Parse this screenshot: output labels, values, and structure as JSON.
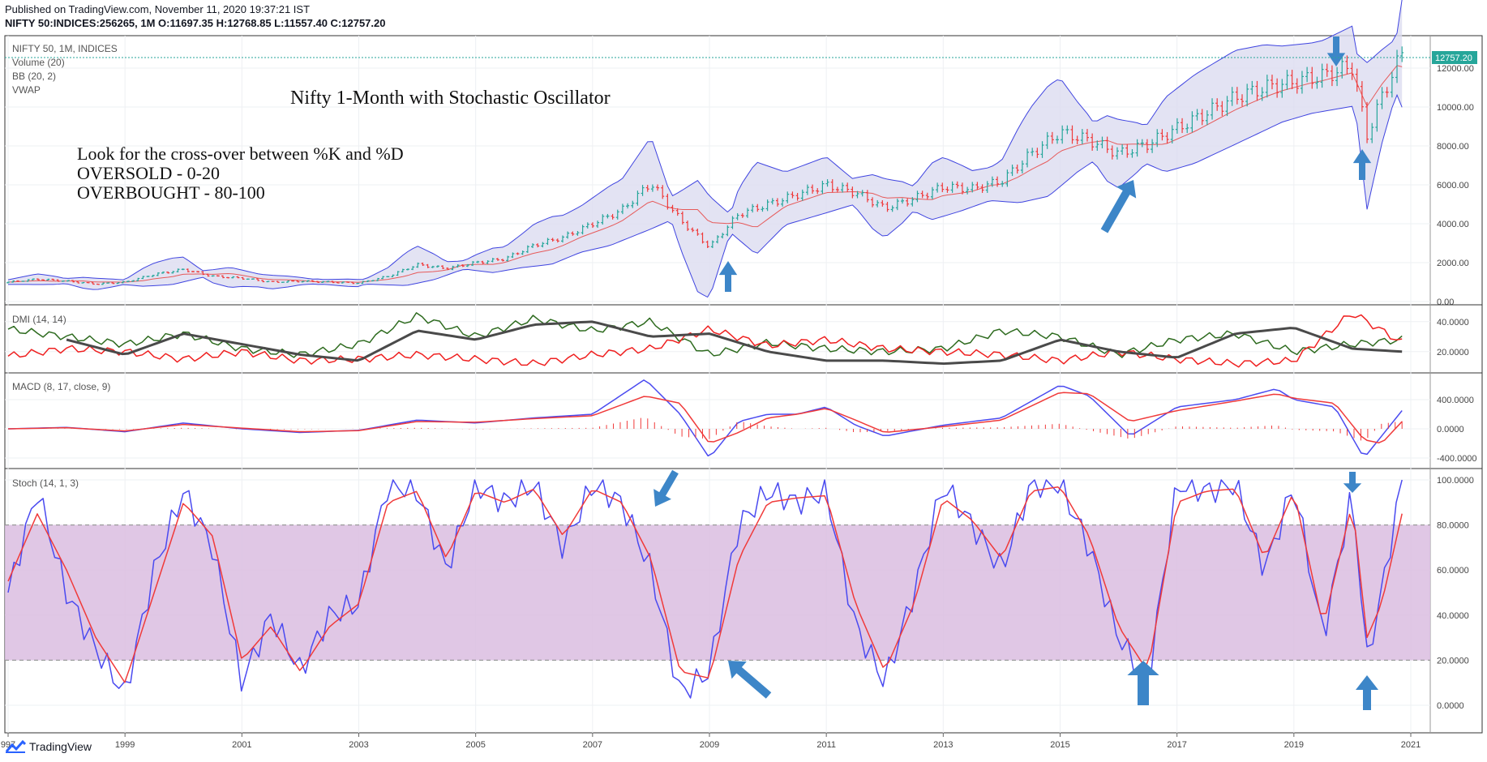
{
  "header": {
    "published": "Published on TradingView.com, November 11, 2020 19:37:21 IST",
    "symbol_line": "NIFTY 50:INDICES:256265, 1M O:11697.35 H:12768.85 L:11557.40 C:12757.20"
  },
  "footer": {
    "brand": "TradingView"
  },
  "price_pane": {
    "labels": [
      "NIFTY 50, 1M, INDICES",
      "Volume (20)",
      "BB (20, 2)",
      "VWAP"
    ],
    "title": "Nifty 1-Month with Stochastic Oscillator",
    "notes": [
      "Look for the cross-over between %K and %D",
      "OVERSOLD - 0-20",
      "OVERBOUGHT - 80-100"
    ],
    "last_price_tag": "12757.20"
  },
  "dmi_pane": {
    "label": "DMI (14, 14)"
  },
  "macd_pane": {
    "label": "MACD (8, 17, close, 9)"
  },
  "stoch_pane": {
    "label": "Stoch (14, 1, 3)"
  },
  "colors": {
    "up": "#26a69a",
    "down": "#ef3b3b",
    "bb_line": "#3f44e0",
    "bb_fill": "#dcdcf0",
    "basis": "#e65a5a",
    "dmi_plus": "#2e6b1f",
    "dmi_minus": "#ef2020",
    "adx": "#4a4a4a",
    "macd": "#4a4af0",
    "signal": "#f03a3a",
    "stoch_k": "#4a4af0",
    "stoch_d": "#f03a3a",
    "stoch_band": "#dbbde0",
    "arrow": "#3d86c8"
  },
  "chart_data": [
    {
      "type": "line",
      "title": "NIFTY 50, 1M, INDICES",
      "x_ticks": [
        "997",
        "1999",
        "2001",
        "2003",
        "2005",
        "2007",
        "2009",
        "2011",
        "2013",
        "2015",
        "2017",
        "2019",
        "2021"
      ],
      "y_ticks": [
        "0.00",
        "2000.00",
        "4000.00",
        "6000.00",
        "8000.00",
        "10000.00",
        "12000.00"
      ],
      "ylim": [
        0,
        13000
      ],
      "series": [
        {
          "name": "NIFTY 50",
          "x": [
            1997,
            1997.5,
            1998,
            1998.5,
            1999,
            1999.5,
            2000,
            2000.5,
            2001,
            2001.5,
            2002,
            2002.5,
            2003,
            2003.5,
            2004,
            2004.5,
            2005,
            2005.5,
            2006,
            2006.5,
            2007,
            2007.5,
            2008,
            2008.5,
            2009,
            2009.5,
            2010,
            2010.5,
            2011,
            2011.5,
            2012,
            2012.5,
            2013,
            2013.5,
            2014,
            2014.5,
            2015,
            2015.5,
            2016,
            2016.5,
            2017,
            2017.5,
            2018,
            2018.5,
            2019,
            2019.5,
            2020,
            2020.25,
            2020.5,
            2020.85
          ],
          "values": [
            1000,
            1150,
            1050,
            900,
            1000,
            1400,
            1650,
            1300,
            1200,
            1000,
            1050,
            1000,
            950,
            1300,
            1900,
            1700,
            2000,
            2200,
            2900,
            3300,
            4000,
            4700,
            6100,
            4200,
            2800,
            4500,
            5000,
            5500,
            6000,
            5600,
            4800,
            5300,
            5900,
            5800,
            6200,
            7600,
            8700,
            8300,
            7600,
            8100,
            8900,
            9700,
            10500,
            11000,
            11300,
            11600,
            12100,
            8500,
            10500,
            12757
          ]
        }
      ]
    },
    {
      "type": "line",
      "title": "DMI (14, 14)",
      "y_ticks": [
        "20.0000",
        "40.0000"
      ],
      "ylim": [
        8,
        48
      ],
      "series": [
        {
          "name": "+DI",
          "x": [
            1997,
            1998,
            1999,
            2000,
            2001,
            2002,
            2003,
            2004,
            2005,
            2006,
            2007,
            2008,
            2009,
            2010,
            2011,
            2012,
            2013,
            2014,
            2015,
            2016,
            2017,
            2018,
            2019,
            2020,
            2020.85
          ],
          "values": [
            35,
            30,
            25,
            32,
            22,
            18,
            25,
            44,
            30,
            42,
            34,
            40,
            18,
            26,
            22,
            20,
            22,
            34,
            30,
            18,
            28,
            32,
            20,
            25,
            28
          ]
        },
        {
          "name": "-DI",
          "x": [
            1997,
            1998,
            1999,
            2000,
            2001,
            2002,
            2003,
            2004,
            2005,
            2006,
            2007,
            2008,
            2009,
            2010,
            2011,
            2012,
            2013,
            2014,
            2015,
            2016,
            2017,
            2018,
            2019,
            2020,
            2020.85
          ],
          "values": [
            17,
            22,
            20,
            15,
            20,
            14,
            15,
            18,
            15,
            12,
            18,
            22,
            35,
            24,
            28,
            22,
            20,
            18,
            14,
            20,
            15,
            12,
            14,
            46,
            26
          ]
        },
        {
          "name": "ADX",
          "x": [
            1997,
            1998,
            1999,
            2000,
            2001,
            2002,
            2003,
            2004,
            2005,
            2006,
            2007,
            2008,
            2009,
            2010,
            2011,
            2012,
            2013,
            2014,
            2015,
            2016,
            2017,
            2018,
            2019,
            2020,
            2020.85
          ],
          "values": [
            0,
            28,
            18,
            32,
            25,
            18,
            14,
            34,
            28,
            38,
            40,
            30,
            32,
            20,
            14,
            14,
            12,
            14,
            28,
            20,
            16,
            32,
            36,
            22,
            20
          ]
        }
      ]
    },
    {
      "type": "line",
      "title": "MACD (8, 17, close, 9)",
      "y_ticks": [
        "-400.0000",
        "0.0000",
        "400.0000"
      ],
      "ylim": [
        -500,
        700
      ],
      "series": [
        {
          "name": "MACD",
          "x": [
            1997,
            1998,
            1999,
            2000,
            2001,
            2002,
            2003,
            2004,
            2005,
            2006,
            2007,
            2007.9,
            2008.5,
            2009,
            2009.5,
            2010,
            2010.5,
            2011,
            2011.5,
            2012,
            2013,
            2014,
            2015,
            2015.5,
            2016.2,
            2017,
            2018,
            2018.7,
            2019,
            2019.7,
            2020.2,
            2020.5,
            2020.85
          ],
          "values": [
            0,
            20,
            -40,
            80,
            0,
            -50,
            -20,
            120,
            80,
            150,
            200,
            680,
            200,
            -400,
            100,
            200,
            200,
            300,
            50,
            -100,
            50,
            150,
            600,
            450,
            -100,
            300,
            400,
            550,
            400,
            300,
            -400,
            -100,
            250
          ]
        },
        {
          "name": "Signal",
          "x": [
            1997,
            1998,
            1999,
            2000,
            2001,
            2002,
            2003,
            2004,
            2005,
            2006,
            2007,
            2007.9,
            2008.5,
            2009,
            2009.5,
            2010,
            2010.5,
            2011,
            2011.5,
            2012,
            2013,
            2014,
            2015,
            2015.5,
            2016.2,
            2017,
            2018,
            2018.7,
            2019,
            2019.7,
            2020.2,
            2020.5,
            2020.85
          ],
          "values": [
            0,
            15,
            -30,
            60,
            10,
            -40,
            -25,
            100,
            90,
            140,
            180,
            450,
            350,
            -200,
            -50,
            150,
            200,
            280,
            120,
            -50,
            30,
            120,
            500,
            480,
            100,
            250,
            380,
            480,
            420,
            350,
            -150,
            -200,
            100
          ]
        }
      ]
    },
    {
      "type": "line",
      "title": "Stoch (14, 1, 3)",
      "y_ticks": [
        "0.0000",
        "20.0000",
        "40.0000",
        "60.0000",
        "80.0000",
        "100.0000"
      ],
      "ylim": [
        0,
        100
      ],
      "series": [
        {
          "name": "%K",
          "x": [
            1997,
            1997.5,
            1998,
            1998.5,
            1999,
            1999.5,
            2000,
            2000.5,
            2001,
            2001.5,
            2002,
            2002.5,
            2003,
            2003.5,
            2004,
            2004.5,
            2005,
            2005.5,
            2006,
            2006.5,
            2007,
            2007.5,
            2008,
            2008.5,
            2009,
            2009.5,
            2010,
            2010.5,
            2011,
            2011.5,
            2012,
            2012.5,
            2013,
            2013.5,
            2014,
            2014.5,
            2015,
            2015.5,
            2016,
            2016.5,
            2017,
            2017.5,
            2018,
            2018.5,
            2019,
            2019.5,
            2020,
            2020.25,
            2020.5,
            2020.85
          ],
          "values": [
            50,
            95,
            50,
            25,
            5,
            60,
            95,
            70,
            10,
            40,
            15,
            40,
            45,
            98,
            95,
            60,
            98,
            90,
            98,
            70,
            98,
            90,
            60,
            5,
            15,
            80,
            95,
            90,
            95,
            35,
            10,
            50,
            98,
            80,
            60,
            98,
            98,
            70,
            30,
            10,
            98,
            95,
            98,
            60,
            98,
            30,
            95,
            20,
            50,
            100
          ]
        },
        {
          "name": "%D",
          "x": [
            1997,
            1997.5,
            1998,
            1998.5,
            1999,
            1999.5,
            2000,
            2000.5,
            2001,
            2001.5,
            2002,
            2002.5,
            2003,
            2003.5,
            2004,
            2004.5,
            2005,
            2005.5,
            2006,
            2006.5,
            2007,
            2007.5,
            2008,
            2008.5,
            2009,
            2009.5,
            2010,
            2010.5,
            2011,
            2011.5,
            2012,
            2012.5,
            2013,
            2013.5,
            2014,
            2014.5,
            2015,
            2015.5,
            2016,
            2016.5,
            2017,
            2017.5,
            2018,
            2018.5,
            2019,
            2019.5,
            2020,
            2020.25,
            2020.5,
            2020.85
          ],
          "values": [
            55,
            85,
            60,
            30,
            10,
            50,
            90,
            75,
            20,
            35,
            15,
            35,
            45,
            90,
            95,
            65,
            95,
            90,
            96,
            75,
            96,
            90,
            65,
            15,
            12,
            65,
            90,
            92,
            93,
            45,
            15,
            45,
            92,
            82,
            65,
            95,
            97,
            75,
            35,
            15,
            90,
            95,
            96,
            65,
            95,
            35,
            90,
            30,
            45,
            85
          ]
        }
      ]
    }
  ]
}
